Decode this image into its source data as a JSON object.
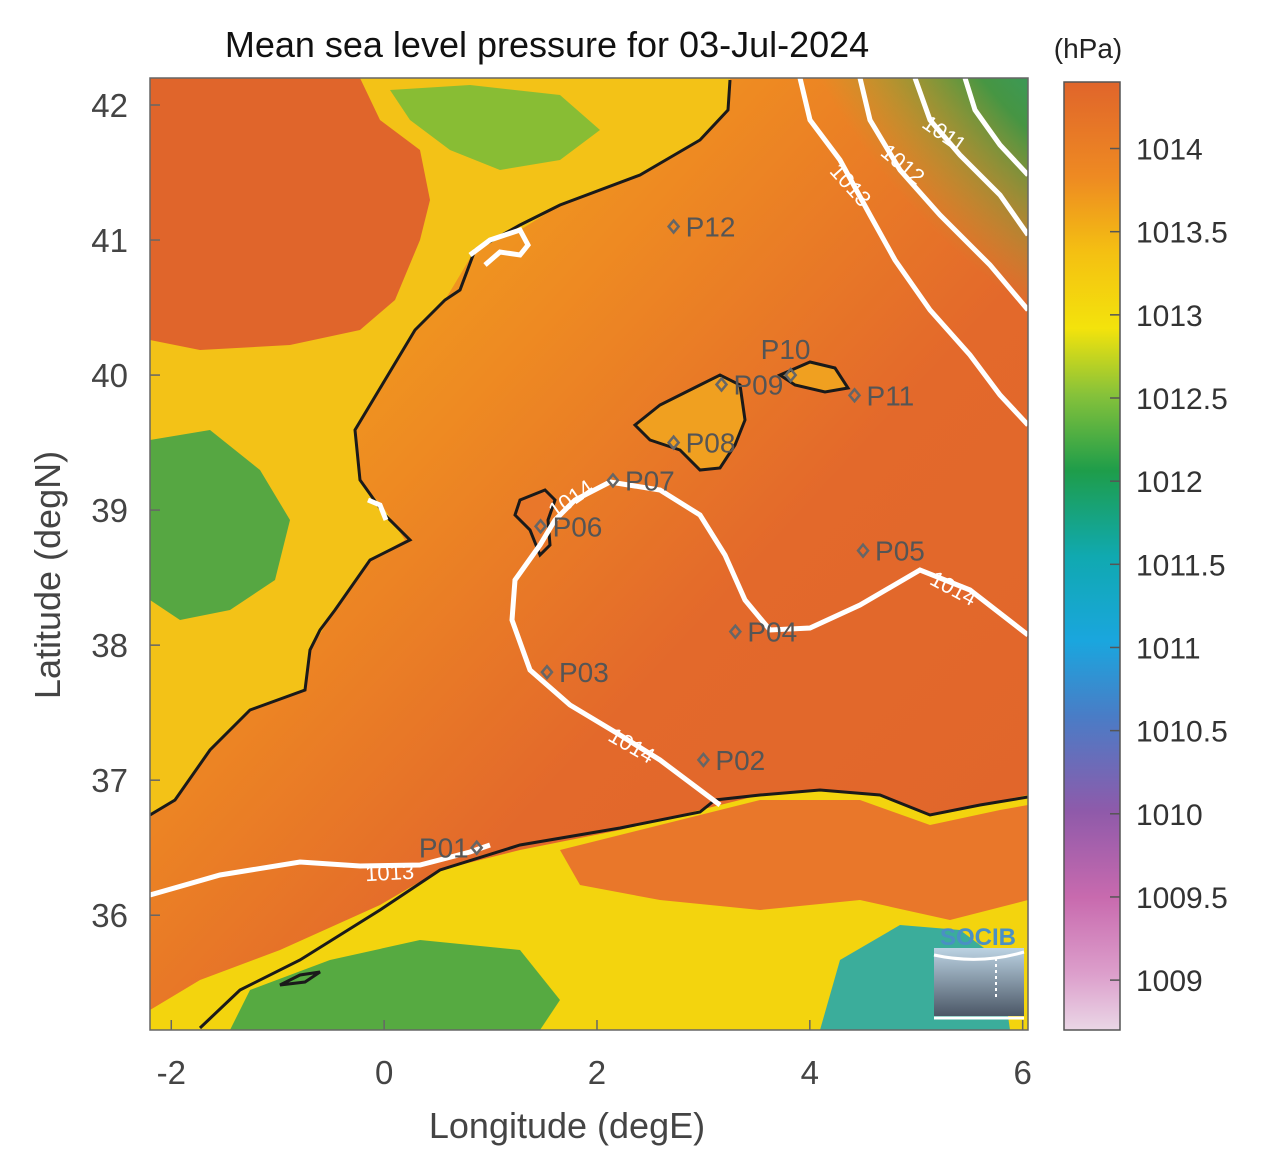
{
  "title": "Mean sea level pressure for 03-Jul-2024",
  "unit": "(hPa)",
  "xlabel": "Longitude (degE)",
  "ylabel": "Latitude (degN)",
  "x_ticks": [
    "-2",
    "0",
    "2",
    "4",
    "6"
  ],
  "y_ticks": [
    "42",
    "41",
    "40",
    "39",
    "38",
    "37",
    "36"
  ],
  "colorbar_ticks": [
    "1014",
    "1013.5",
    "1013",
    "1012.5",
    "1012",
    "1011.5",
    "1011",
    "1010.5",
    "1010",
    "1009.5",
    "1009"
  ],
  "contour_labels": [
    "1011",
    "1012",
    "1013",
    "1014",
    "1014",
    "1014",
    "1013"
  ],
  "logo_text": "SOCIB",
  "colors": {
    "high": "#e0652b",
    "mid": "#f3b514",
    "yellow": "#f3e30c",
    "green": "#1e9d4a",
    "teal": "#10a9b0",
    "blue": "#1aa6de",
    "purple": "#8f5aaa",
    "pink": "#e8c3dc",
    "coast": "#1a1a1a",
    "contour": "#ffffff"
  },
  "chart_data": {
    "type": "heatmap",
    "title": "Mean sea level pressure for 03-Jul-2024",
    "xlabel": "Longitude (degE)",
    "ylabel": "Latitude (degN)",
    "xlim": [
      -2.2,
      6.05
    ],
    "ylim": [
      35.15,
      42.2
    ],
    "colorbar": {
      "unit": "(hPa)",
      "range": [
        1008.7,
        1014.4
      ]
    },
    "stations": [
      {
        "name": "P01",
        "lon": 0.87,
        "lat": 36.5
      },
      {
        "name": "P02",
        "lon": 3.0,
        "lat": 37.15
      },
      {
        "name": "P03",
        "lon": 1.53,
        "lat": 37.8
      },
      {
        "name": "P04",
        "lon": 3.3,
        "lat": 38.1
      },
      {
        "name": "P05",
        "lon": 4.5,
        "lat": 38.7
      },
      {
        "name": "P06",
        "lon": 1.47,
        "lat": 38.88
      },
      {
        "name": "P07",
        "lon": 2.15,
        "lat": 39.22
      },
      {
        "name": "P08",
        "lon": 2.72,
        "lat": 39.5
      },
      {
        "name": "P09",
        "lon": 3.17,
        "lat": 39.93
      },
      {
        "name": "P10",
        "lon": 3.82,
        "lat": 40.0
      },
      {
        "name": "P11",
        "lon": 4.42,
        "lat": 39.85
      },
      {
        "name": "P12",
        "lon": 2.72,
        "lat": 41.1
      }
    ]
  }
}
